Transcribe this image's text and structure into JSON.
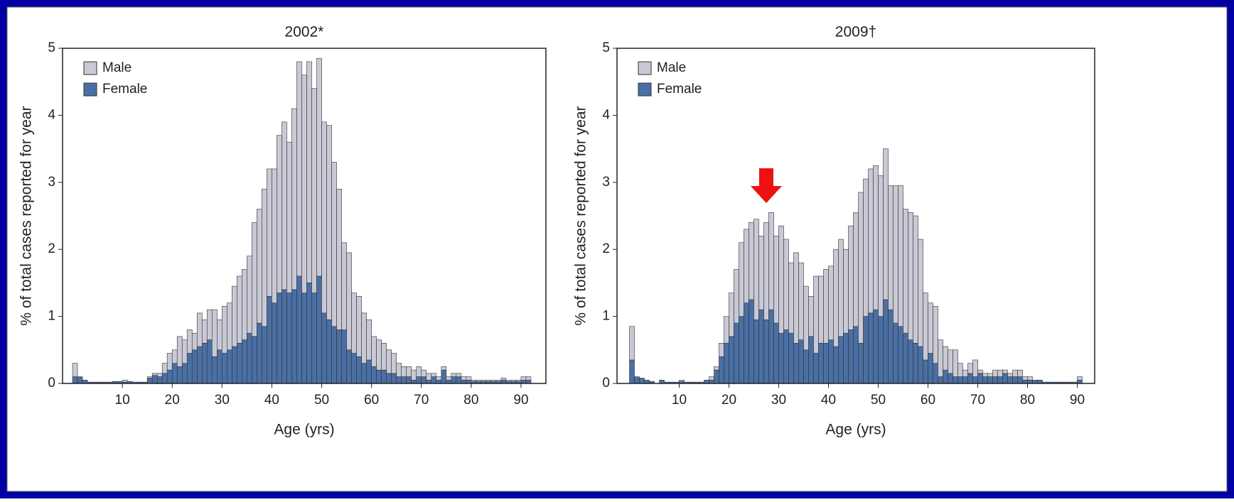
{
  "chart_data": [
    {
      "type": "histogram",
      "title": "2002*",
      "x_label": "Age (yrs)",
      "y_label": "% of total cases reported for year",
      "bins": [
        0,
        1,
        2,
        3,
        4,
        5,
        6,
        7,
        8,
        9,
        10,
        11,
        12,
        13,
        14,
        15,
        16,
        17,
        18,
        19,
        20,
        21,
        22,
        23,
        24,
        25,
        26,
        27,
        28,
        29,
        30,
        31,
        32,
        33,
        34,
        35,
        36,
        37,
        38,
        39,
        40,
        41,
        42,
        43,
        44,
        45,
        46,
        47,
        48,
        49,
        50,
        51,
        52,
        53,
        54,
        55,
        56,
        57,
        58,
        59,
        60,
        61,
        62,
        63,
        64,
        65,
        66,
        67,
        68,
        69,
        70,
        71,
        72,
        73,
        74,
        75,
        76,
        77,
        78,
        79,
        80,
        81,
        82,
        83,
        84,
        85,
        86,
        87,
        88,
        89,
        90,
        91,
        92
      ],
      "series": [
        {
          "name": "Male",
          "color": "#c9c9d6",
          "values": [
            0.2,
            0,
            0,
            0,
            0,
            0,
            0,
            0,
            0,
            0,
            0.03,
            0,
            0,
            0,
            0,
            0.02,
            0.03,
            0.05,
            0.15,
            0.25,
            0.2,
            0.45,
            0.35,
            0.35,
            0.25,
            0.5,
            0.35,
            0.45,
            0.7,
            0.45,
            0.7,
            0.7,
            0.9,
            1.0,
            1.05,
            1.15,
            1.7,
            1.7,
            2.05,
            1.9,
            2.0,
            2.35,
            2.5,
            2.25,
            2.7,
            3.2,
            3.25,
            3.3,
            3.05,
            3.25,
            2.85,
            2.9,
            2.45,
            2.1,
            1.3,
            1.45,
            0.9,
            0.9,
            0.75,
            0.6,
            0.45,
            0.45,
            0.4,
            0.35,
            0.3,
            0.2,
            0.15,
            0.15,
            0.15,
            0.15,
            0.1,
            0.1,
            0.05,
            0.05,
            0.05,
            0.05,
            0.05,
            0.05,
            0.05,
            0.05,
            0.02,
            0.02,
            0.02,
            0.02,
            0.02,
            0.02,
            0.03,
            0.02,
            0.02,
            0.02,
            0.05,
            0.05
          ]
        },
        {
          "name": "Female",
          "color": "#4a6fa5",
          "values": [
            0.1,
            0.1,
            0.05,
            0.02,
            0.02,
            0.02,
            0.02,
            0.02,
            0.03,
            0.03,
            0.02,
            0.03,
            0.02,
            0.02,
            0.02,
            0.08,
            0.12,
            0.1,
            0.15,
            0.2,
            0.3,
            0.25,
            0.3,
            0.45,
            0.5,
            0.55,
            0.6,
            0.65,
            0.4,
            0.5,
            0.45,
            0.5,
            0.55,
            0.6,
            0.65,
            0.75,
            0.7,
            0.9,
            0.85,
            1.3,
            1.2,
            1.35,
            1.4,
            1.35,
            1.4,
            1.6,
            1.35,
            1.5,
            1.35,
            1.6,
            1.05,
            0.95,
            0.85,
            0.8,
            0.8,
            0.5,
            0.45,
            0.4,
            0.3,
            0.35,
            0.25,
            0.2,
            0.2,
            0.15,
            0.15,
            0.1,
            0.1,
            0.1,
            0.05,
            0.1,
            0.1,
            0.05,
            0.1,
            0.05,
            0.2,
            0.05,
            0.1,
            0.1,
            0.05,
            0.05,
            0.03,
            0.03,
            0.03,
            0.03,
            0.03,
            0.03,
            0.05,
            0.03,
            0.03,
            0.03,
            0.05,
            0.05
          ]
        }
      ],
      "stacked": true,
      "legend": "upper left",
      "xlim": [
        -2,
        95
      ],
      "ylim": [
        0,
        5
      ],
      "xticks": [
        10,
        20,
        30,
        40,
        50,
        60,
        70,
        80,
        90
      ],
      "yticks": [
        0,
        1,
        2,
        3,
        4,
        5
      ]
    },
    {
      "type": "histogram",
      "title": "2009†",
      "x_label": "Age (yrs)",
      "y_label": "% of total cases reported for year",
      "bins": [
        0,
        1,
        2,
        3,
        4,
        5,
        6,
        7,
        8,
        9,
        10,
        11,
        12,
        13,
        14,
        15,
        16,
        17,
        18,
        19,
        20,
        21,
        22,
        23,
        24,
        25,
        26,
        27,
        28,
        29,
        30,
        31,
        32,
        33,
        34,
        35,
        36,
        37,
        38,
        39,
        40,
        41,
        42,
        43,
        44,
        45,
        46,
        47,
        48,
        49,
        50,
        51,
        52,
        53,
        54,
        55,
        56,
        57,
        58,
        59,
        60,
        61,
        62,
        63,
        64,
        65,
        66,
        67,
        68,
        69,
        70,
        71,
        72,
        73,
        74,
        75,
        76,
        77,
        78,
        79,
        80,
        81,
        82,
        83,
        84,
        85,
        86,
        87,
        88,
        89,
        90,
        91,
        92
      ],
      "series": [
        {
          "name": "Male",
          "color": "#c9c9d6",
          "values": [
            0.5,
            0,
            0,
            0,
            0,
            0,
            0,
            0,
            0,
            0,
            0.02,
            0,
            0,
            0,
            0,
            0,
            0.05,
            0.05,
            0.2,
            0.4,
            0.65,
            0.8,
            1.1,
            1.1,
            1.15,
            1.5,
            1.1,
            1.45,
            1.45,
            1.3,
            1.6,
            1.35,
            1.05,
            1.35,
            1.15,
            0.95,
            0.6,
            1.15,
            1.0,
            1.1,
            1.1,
            1.45,
            1.45,
            1.25,
            1.55,
            1.7,
            2.25,
            2.05,
            2.15,
            2.15,
            2.1,
            2.25,
            1.85,
            2.05,
            2.1,
            1.85,
            1.9,
            1.9,
            1.6,
            1.0,
            0.75,
            0.85,
            0.55,
            0.35,
            0.35,
            0.4,
            0.2,
            0.1,
            0.15,
            0.25,
            0.05,
            0.05,
            0.05,
            0.1,
            0.1,
            0.05,
            0.05,
            0.1,
            0.1,
            0.05,
            0.05,
            0,
            0,
            0,
            0,
            0,
            0,
            0,
            0,
            0,
            0.05,
            0
          ]
        },
        {
          "name": "Female",
          "color": "#4a6fa5",
          "values": [
            0.35,
            0.1,
            0.08,
            0.05,
            0.03,
            0,
            0.05,
            0.02,
            0.02,
            0.02,
            0.03,
            0.02,
            0.02,
            0.02,
            0.02,
            0.05,
            0.05,
            0.2,
            0.4,
            0.6,
            0.7,
            0.9,
            1.0,
            1.2,
            1.25,
            0.95,
            1.1,
            0.95,
            1.1,
            0.9,
            0.75,
            0.8,
            0.75,
            0.6,
            0.65,
            0.5,
            0.7,
            0.45,
            0.6,
            0.6,
            0.65,
            0.55,
            0.7,
            0.75,
            0.8,
            0.85,
            0.6,
            1.0,
            1.05,
            1.1,
            1.0,
            1.25,
            1.1,
            0.9,
            0.85,
            0.75,
            0.65,
            0.6,
            0.55,
            0.35,
            0.45,
            0.3,
            0.1,
            0.2,
            0.15,
            0.1,
            0.1,
            0.1,
            0.15,
            0.1,
            0.15,
            0.1,
            0.1,
            0.1,
            0.1,
            0.15,
            0.1,
            0.1,
            0.1,
            0.05,
            0.05,
            0.05,
            0.05,
            0.02,
            0.02,
            0.02,
            0.02,
            0.02,
            0.02,
            0.02,
            0.05,
            0
          ]
        }
      ],
      "stacked": true,
      "legend": "upper left",
      "xlim": [
        -2.5,
        93.5
      ],
      "ylim": [
        0,
        5
      ],
      "xticks": [
        10,
        20,
        30,
        40,
        50,
        60,
        70,
        80,
        90
      ],
      "yticks": [
        0,
        1,
        2,
        3,
        4,
        5
      ]
    }
  ]
}
